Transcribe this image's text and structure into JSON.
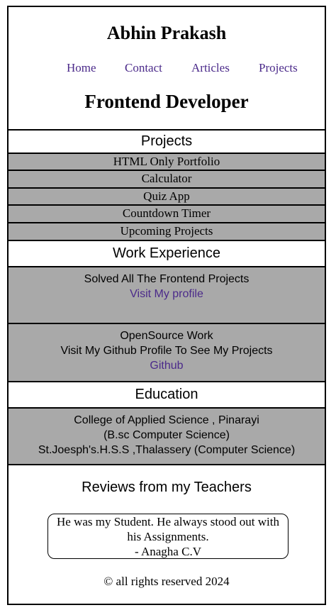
{
  "header": {
    "name": "Abhin Prakash",
    "nav": [
      "Home",
      "Contact",
      "Articles",
      "Projects"
    ],
    "role": "Frontend Developer"
  },
  "projects": {
    "title": "Projects",
    "items": [
      "HTML Only Portfolio",
      "Calculator",
      "Quiz App",
      "Countdown Timer",
      "Upcoming Projects"
    ]
  },
  "work": {
    "title": "Work Experience",
    "entries": [
      {
        "line1": "Solved All The Frontend Projects",
        "link": "Visit My profile"
      },
      {
        "line1": "OpenSource Work",
        "line2": "Visit My Github Profile To See My Projects",
        "link": "Github"
      }
    ]
  },
  "education": {
    "title": "Education",
    "lines": [
      "College of Applied Science , Pinarayi",
      "(B.sc Computer Science)",
      "St.Joesph's.H.S.S ,Thalassery (Computer Science)"
    ]
  },
  "reviews": {
    "title": "Reviews from my Teachers",
    "quote_line1": "He was my Student. He always stood out with",
    "quote_line2": "his Assignments.",
    "author": "- Anagha C.V"
  },
  "footer": {
    "text": "© all rights reserved 2024"
  },
  "colors": {
    "link": "#4b2a8a",
    "section_bg": "#a9a9a9",
    "border": "#000000"
  }
}
